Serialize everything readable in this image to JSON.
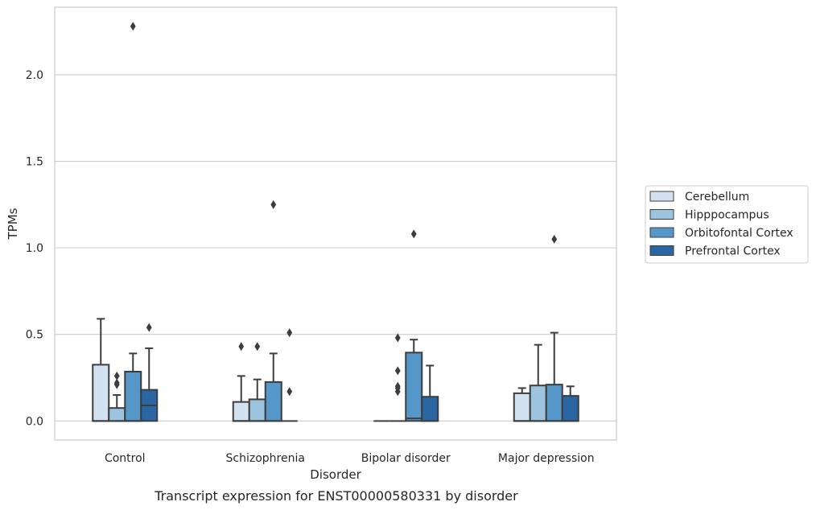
{
  "chart_data": {
    "type": "box",
    "title": "Transcript expression for ENST00000580331 by disorder",
    "xlabel": "Disorder",
    "ylabel": "TPMs",
    "ylim": [
      -0.11,
      2.39
    ],
    "yticks": [
      0.0,
      0.5,
      1.0,
      1.5,
      2.0
    ],
    "ytick_labels": [
      "0.0",
      "0.5",
      "1.0",
      "1.5",
      "2.0"
    ],
    "grid": "horizontal",
    "legend_position": "right",
    "categories": [
      "Control",
      "Schizophrenia",
      "Bipolar disorder",
      "Major depression"
    ],
    "series": [
      {
        "name": "Cerebellum",
        "color": "#d2e2f0",
        "boxes": [
          {
            "whislo": 0.0,
            "q1": 0.0,
            "med": 0.0,
            "q3": 0.325,
            "whishi": 0.59,
            "fliers": []
          },
          {
            "whislo": 0.0,
            "q1": 0.0,
            "med": 0.0,
            "q3": 0.11,
            "whishi": 0.26,
            "fliers": [
              0.43
            ]
          },
          {
            "whislo": 0.0,
            "q1": 0.0,
            "med": 0.0,
            "q3": 0.0,
            "whishi": 0.0,
            "fliers": []
          },
          {
            "whislo": 0.0,
            "q1": 0.0,
            "med": 0.0,
            "q3": 0.16,
            "whishi": 0.19,
            "fliers": []
          }
        ]
      },
      {
        "name": "Hipppocampus",
        "color": "#9dc4de",
        "boxes": [
          {
            "whislo": 0.0,
            "q1": 0.0,
            "med": 0.0,
            "q3": 0.075,
            "whishi": 0.15,
            "fliers": [
              0.21,
              0.22,
              0.26
            ]
          },
          {
            "whislo": 0.0,
            "q1": 0.0,
            "med": 0.0,
            "q3": 0.125,
            "whishi": 0.24,
            "fliers": [
              0.43
            ]
          },
          {
            "whislo": 0.0,
            "q1": 0.0,
            "med": 0.0,
            "q3": 0.0,
            "whishi": 0.0,
            "fliers": [
              0.17,
              0.2,
              0.19,
              0.29,
              0.48
            ]
          },
          {
            "whislo": 0.0,
            "q1": 0.0,
            "med": 0.0,
            "q3": 0.205,
            "whishi": 0.44,
            "fliers": []
          }
        ]
      },
      {
        "name": "Orbitofontal Cortex",
        "color": "#5597c8",
        "boxes": [
          {
            "whislo": 0.0,
            "q1": 0.0,
            "med": 0.0,
            "q3": 0.285,
            "whishi": 0.39,
            "fliers": [
              2.28
            ]
          },
          {
            "whislo": 0.0,
            "q1": 0.0,
            "med": 0.0,
            "q3": 0.225,
            "whishi": 0.39,
            "fliers": [
              1.25
            ]
          },
          {
            "whislo": 0.0,
            "q1": 0.0,
            "med": 0.015,
            "q3": 0.395,
            "whishi": 0.47,
            "fliers": [
              1.08
            ]
          },
          {
            "whislo": 0.0,
            "q1": 0.0,
            "med": 0.0,
            "q3": 0.21,
            "whishi": 0.51,
            "fliers": [
              1.05
            ]
          }
        ]
      },
      {
        "name": "Prefrontal Cortex",
        "color": "#2a66a4",
        "boxes": [
          {
            "whislo": 0.0,
            "q1": 0.0,
            "med": 0.09,
            "q3": 0.18,
            "whishi": 0.42,
            "fliers": [
              0.54
            ]
          },
          {
            "whislo": 0.0,
            "q1": 0.0,
            "med": 0.0,
            "q3": 0.0,
            "whishi": 0.0,
            "fliers": [
              0.17,
              0.51
            ]
          },
          {
            "whislo": 0.0,
            "q1": 0.0,
            "med": 0.0,
            "q3": 0.14,
            "whishi": 0.32,
            "fliers": []
          },
          {
            "whislo": 0.0,
            "q1": 0.0,
            "med": 0.0,
            "q3": 0.145,
            "whishi": 0.2,
            "fliers": []
          }
        ]
      }
    ]
  }
}
